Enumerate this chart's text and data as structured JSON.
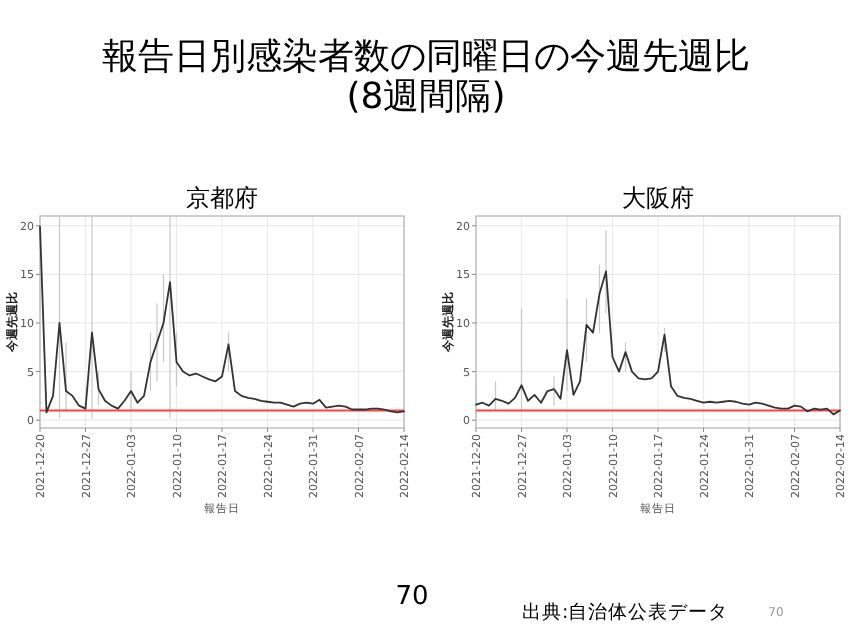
{
  "chart_data": [
    {
      "type": "line",
      "title": "京都府",
      "xlabel": "報告日",
      "ylabel": "今週先週比",
      "annotations": [
        "報告日別感染者数の同曜日の今週先週比\n(8週間隔)",
        "70",
        "出典:自治体公表データ",
        "70"
      ],
      "xlim": [
        "2021-12-20",
        "2022-02-14"
      ],
      "ylim": [
        -0.8,
        21
      ],
      "xticks": [
        "2021-12-20",
        "2021-12-27",
        "2022-01-03",
        "2022-01-10",
        "2022-01-17",
        "2022-01-24",
        "2022-01-31",
        "2022-02-07",
        "2022-02-14"
      ],
      "yticks": [
        0,
        5,
        10,
        15,
        20
      ],
      "grid": true,
      "ref_lines": [
        {
          "axis": "y",
          "value": 1,
          "color": "#ff4040"
        }
      ],
      "series": [
        {
          "color": "#333333",
          "x": [
            "2021-12-20",
            "2021-12-21",
            "2021-12-22",
            "2021-12-23",
            "2021-12-24",
            "2021-12-25",
            "2021-12-26",
            "2021-12-27",
            "2021-12-28",
            "2021-12-29",
            "2021-12-30",
            "2021-12-31",
            "2022-01-01",
            "2022-01-02",
            "2022-01-03",
            "2022-01-04",
            "2022-01-05",
            "2022-01-06",
            "2022-01-07",
            "2022-01-08",
            "2022-01-09",
            "2022-01-10",
            "2022-01-11",
            "2022-01-12",
            "2022-01-13",
            "2022-01-14",
            "2022-01-15",
            "2022-01-16",
            "2022-01-17",
            "2022-01-18",
            "2022-01-19",
            "2022-01-20",
            "2022-01-21",
            "2022-01-22",
            "2022-01-23",
            "2022-01-24",
            "2022-01-25",
            "2022-01-26",
            "2022-01-27",
            "2022-01-28",
            "2022-01-29",
            "2022-01-30",
            "2022-01-31",
            "2022-02-01",
            "2022-02-02",
            "2022-02-03",
            "2022-02-04",
            "2022-02-05",
            "2022-02-06",
            "2022-02-07",
            "2022-02-08",
            "2022-02-09",
            "2022-02-10",
            "2022-02-11",
            "2022-02-12",
            "2022-02-13",
            "2022-02-14"
          ],
          "values": [
            19.9,
            0.8,
            2.5,
            10,
            3,
            2.5,
            1.5,
            1.2,
            9,
            3.2,
            2,
            1.5,
            1.2,
            2,
            3,
            1.8,
            2.5,
            6,
            8,
            10,
            14.2,
            6,
            5,
            4.6,
            4.8,
            4.5,
            4.2,
            4,
            4.5,
            7.8,
            3,
            2.5,
            2.3,
            2.2,
            2,
            1.9,
            1.8,
            1.8,
            1.6,
            1.4,
            1.7,
            1.8,
            1.7,
            2.1,
            1.3,
            1.4,
            1.5,
            1.4,
            1.1,
            1.1,
            1.1,
            1.2,
            1.2,
            1.1,
            0.9,
            0.8,
            0.9
          ],
          "errors": [
            null,
            null,
            null,
            [
              0.2,
              21
            ],
            [
              1,
              8
            ],
            null,
            null,
            null,
            [
              0.2,
              21
            ],
            [
              1.5,
              5
            ],
            null,
            null,
            null,
            null,
            [
              1,
              5
            ],
            null,
            null,
            [
              3,
              9
            ],
            [
              4,
              12
            ],
            [
              6,
              15
            ],
            [
              0.2,
              21
            ],
            [
              3.5,
              9
            ],
            null,
            null,
            null,
            null,
            null,
            null,
            null,
            [
              5,
              9
            ],
            null,
            null,
            null,
            null,
            null,
            null,
            null,
            null,
            null,
            null,
            null,
            null,
            null,
            null,
            null,
            null,
            null,
            null,
            null,
            null,
            null,
            null,
            null,
            null,
            null,
            null,
            null
          ]
        }
      ]
    },
    {
      "type": "line",
      "title": "大阪府",
      "xlabel": "報告日",
      "ylabel": "今週先週比",
      "xlim": [
        "2021-12-20",
        "2022-02-14"
      ],
      "ylim": [
        -0.8,
        21
      ],
      "xticks": [
        "2021-12-20",
        "2021-12-27",
        "2022-01-03",
        "2022-01-10",
        "2022-01-17",
        "2022-01-24",
        "2022-01-31",
        "2022-02-07",
        "2022-02-14"
      ],
      "yticks": [
        0,
        5,
        10,
        15,
        20
      ],
      "grid": true,
      "ref_lines": [
        {
          "axis": "y",
          "value": 1,
          "color": "#ff4040"
        }
      ],
      "series": [
        {
          "color": "#333333",
          "x": [
            "2021-12-20",
            "2021-12-21",
            "2021-12-22",
            "2021-12-23",
            "2021-12-24",
            "2021-12-25",
            "2021-12-26",
            "2021-12-27",
            "2021-12-28",
            "2021-12-29",
            "2021-12-30",
            "2021-12-31",
            "2022-01-01",
            "2022-01-02",
            "2022-01-03",
            "2022-01-04",
            "2022-01-05",
            "2022-01-06",
            "2022-01-07",
            "2022-01-08",
            "2022-01-09",
            "2022-01-10",
            "2022-01-11",
            "2022-01-12",
            "2022-01-13",
            "2022-01-14",
            "2022-01-15",
            "2022-01-16",
            "2022-01-17",
            "2022-01-18",
            "2022-01-19",
            "2022-01-20",
            "2022-01-21",
            "2022-01-22",
            "2022-01-23",
            "2022-01-24",
            "2022-01-25",
            "2022-01-26",
            "2022-01-27",
            "2022-01-28",
            "2022-01-29",
            "2022-01-30",
            "2022-01-31",
            "2022-02-01",
            "2022-02-02",
            "2022-02-03",
            "2022-02-04",
            "2022-02-05",
            "2022-02-06",
            "2022-02-07",
            "2022-02-08",
            "2022-02-09",
            "2022-02-10",
            "2022-02-11",
            "2022-02-12",
            "2022-02-13",
            "2022-02-14"
          ],
          "values": [
            1.6,
            1.8,
            1.5,
            2.2,
            2,
            1.7,
            2.3,
            3.6,
            2,
            2.6,
            1.8,
            3,
            3.2,
            2.2,
            7.2,
            2.6,
            4,
            9.8,
            9,
            13,
            15.3,
            6.5,
            5,
            7,
            5,
            4.3,
            4.2,
            4.3,
            5,
            8.8,
            3.5,
            2.5,
            2.3,
            2.2,
            2,
            1.8,
            1.9,
            1.8,
            1.9,
            2,
            1.9,
            1.7,
            1.6,
            1.8,
            1.7,
            1.5,
            1.3,
            1.2,
            1.2,
            1.5,
            1.4,
            0.9,
            1.2,
            1.1,
            1.2,
            0.6,
            1
          ],
          "errors": [
            [
              0.5,
              3.5
            ],
            null,
            null,
            [
              1,
              4
            ],
            null,
            null,
            null,
            [
              1,
              11.5
            ],
            null,
            null,
            null,
            null,
            [
              1.5,
              4.5
            ],
            null,
            [
              3,
              12.5
            ],
            null,
            null,
            [
              6,
              12.5
            ],
            null,
            [
              9,
              16
            ],
            [
              11,
              19.5
            ],
            null,
            null,
            [
              5,
              8
            ],
            null,
            null,
            null,
            null,
            null,
            [
              7,
              9.5
            ],
            null,
            null,
            null,
            null,
            null,
            null,
            null,
            null,
            null,
            null,
            null,
            null,
            null,
            null,
            null,
            null,
            null,
            null,
            null,
            null,
            null,
            null,
            null,
            null,
            null,
            null,
            null
          ]
        }
      ]
    }
  ]
}
